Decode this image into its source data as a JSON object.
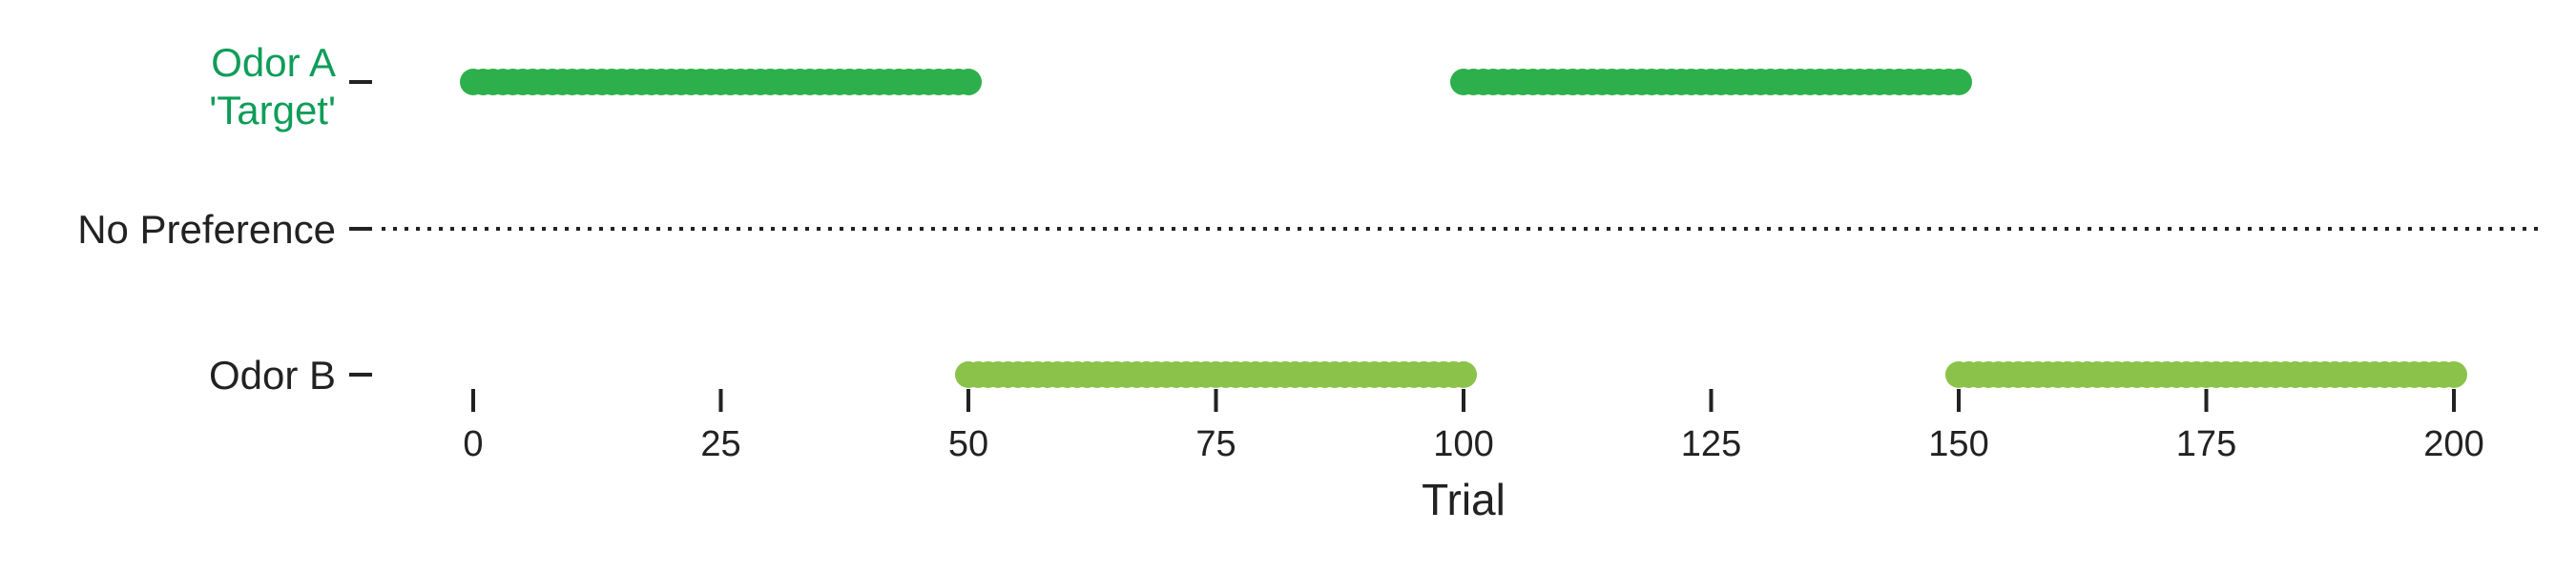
{
  "chart_data": {
    "type": "scatter",
    "xlabel": "Trial",
    "xlim": [
      0,
      200
    ],
    "xticks": [
      0,
      25,
      50,
      75,
      100,
      125,
      150,
      175,
      200
    ],
    "xtick_labels": [
      "0",
      "25",
      "50",
      "75",
      "100",
      "125",
      "150",
      "175",
      "200"
    ],
    "y_categories": [
      {
        "key": "odor_a",
        "line1": "Odor A",
        "line2": "'Target'",
        "color": "#0f9d58"
      },
      {
        "key": "no_pref",
        "line1": "No Preference",
        "line2": "",
        "color": "#222222"
      },
      {
        "key": "odor_b",
        "line1": "Odor B",
        "line2": "",
        "color": "#222222"
      }
    ],
    "reference_line": {
      "category": "no_pref",
      "style": "dotted",
      "color": "#222222"
    },
    "series": [
      {
        "category": "odor_a",
        "color": "#2db04b",
        "segments": [
          [
            0,
            50
          ],
          [
            100,
            150
          ]
        ]
      },
      {
        "category": "odor_b",
        "color": "#8bc34a",
        "segments": [
          [
            50,
            100
          ],
          [
            150,
            200
          ]
        ]
      }
    ],
    "grid": false,
    "legend": "none"
  }
}
